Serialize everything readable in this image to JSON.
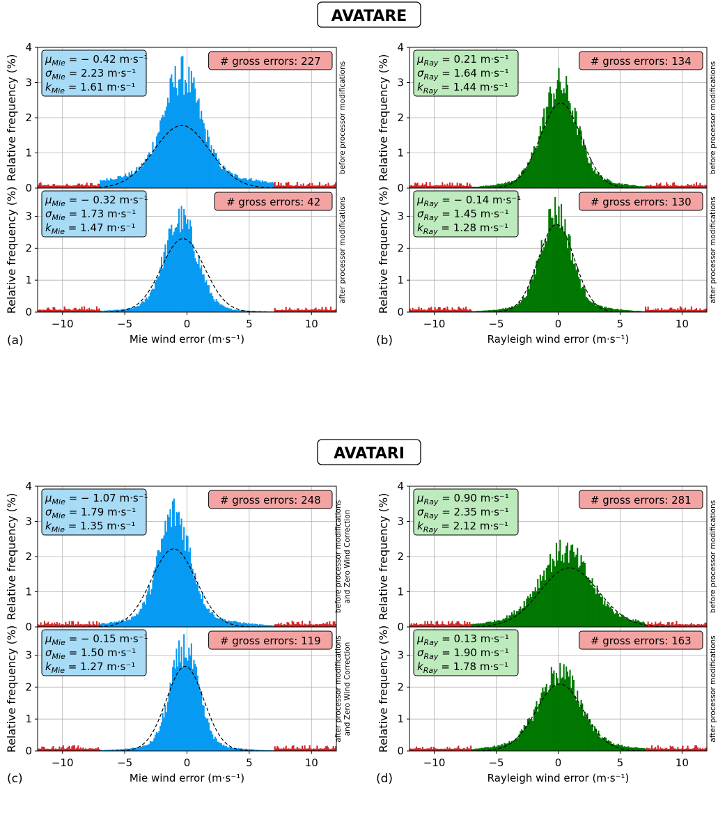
{
  "section_titles": [
    "AVATARE",
    "AVATARI"
  ],
  "panel_labels": [
    "(a)",
    "(b)",
    "(c)",
    "(d)"
  ],
  "shared": {
    "ylabel": "Relative frequency (%)",
    "xlabel_mie": "Mie wind error (m·s⁻¹)",
    "xlabel_ray": "Rayleigh wind error (m·s⁻¹)",
    "xlim": [
      -12,
      12
    ],
    "ylim": [
      0,
      4
    ],
    "x_ticks": [
      "−10",
      "−5",
      "0",
      "5",
      "10"
    ],
    "y_ticks": [
      "0",
      "1",
      "2",
      "3",
      "4"
    ],
    "grid": true,
    "gross_threshold_abs": 7
  },
  "colors": {
    "mie_fill": "#069af3",
    "ray_fill": "#007700",
    "gross_fill": "#d62728",
    "mie_box_bg": "#a8dcf6",
    "ray_box_bg": "#bdebbd",
    "gross_box_bg": "#f4a3a3",
    "fit_line": "#000000",
    "grid": "#b0b0b0"
  },
  "chart_data": [
    {
      "type": "area",
      "panel": "a-top",
      "wind": "Mie",
      "side_label": [
        "before processor modifications"
      ],
      "stats": [
        "μMie = − 0.42 m·s⁻¹",
        "σMie = 2.23 m·s⁻¹",
        "kMie = 1.61 m·s⁻¹"
      ],
      "gross_errors_label": "# gross errors: 227",
      "fit": {
        "mu": -0.42,
        "sigma": 2.23,
        "peak": 1.78
      },
      "hist": {
        "center": -0.4,
        "peak": 2.75,
        "width": 1.45,
        "tail_left": 0.34,
        "tail_right": 0.28,
        "tail_width": 4.5
      }
    },
    {
      "type": "area",
      "panel": "a-bottom",
      "wind": "Mie",
      "side_label": [
        "after processor modifications"
      ],
      "stats": [
        "μMie = − 0.32 m·s⁻¹",
        "σMie = 1.73 m·s⁻¹",
        "kMie = 1.47 m·s⁻¹"
      ],
      "gross_errors_label": "# gross errors: 42",
      "fit": {
        "mu": -0.32,
        "sigma": 1.73,
        "peak": 2.3
      },
      "hist": {
        "center": -0.5,
        "peak": 2.75,
        "width": 1.3,
        "tail_left": 0.12,
        "tail_right": 0.08,
        "tail_width": 3.2
      }
    },
    {
      "type": "area",
      "panel": "b-top",
      "wind": "Rayleigh",
      "side_label": [
        "before processor modifications"
      ],
      "stats": [
        "μRay = 0.21 m·s⁻¹",
        "σRay = 1.64 m·s⁻¹",
        "kRay = 1.44 m·s⁻¹"
      ],
      "gross_errors_label": "# gross errors: 134",
      "fit": {
        "mu": 0.21,
        "sigma": 1.64,
        "peak": 2.42
      },
      "hist": {
        "center": 0.1,
        "peak": 2.65,
        "width": 1.35,
        "tail_left": 0.18,
        "tail_right": 0.22,
        "tail_width": 3.0
      }
    },
    {
      "type": "area",
      "panel": "b-bottom",
      "wind": "Rayleigh",
      "side_label": [
        "after processor modifications"
      ],
      "stats": [
        "μRay = − 0.14 m·s⁻¹",
        "σRay = 1.45 m·s⁻¹",
        "kRay = 1.28 m·s⁻¹"
      ],
      "gross_errors_label": "# gross errors: 130",
      "fit": {
        "mu": -0.14,
        "sigma": 1.45,
        "peak": 2.75
      },
      "hist": {
        "center": -0.2,
        "peak": 2.95,
        "width": 1.2,
        "tail_left": 0.14,
        "tail_right": 0.18,
        "tail_width": 2.8
      }
    },
    {
      "type": "area",
      "panel": "c-top",
      "wind": "Mie",
      "side_label": [
        "before processor modifications",
        "and Zero Wind Correction"
      ],
      "stats": [
        "μMie = − 1.07 m·s⁻¹",
        "σMie = 1.79 m·s⁻¹",
        "kMie = 1.35 m·s⁻¹"
      ],
      "gross_errors_label": "# gross errors: 248",
      "fit": {
        "mu": -1.07,
        "sigma": 1.79,
        "peak": 2.22
      },
      "hist": {
        "center": -1.0,
        "peak": 2.95,
        "width": 1.25,
        "tail_left": 0.18,
        "tail_right": 0.2,
        "tail_width": 3.5
      }
    },
    {
      "type": "area",
      "panel": "c-bottom",
      "wind": "Mie",
      "side_label": [
        "after processor modifications",
        "and Zero Wind Correction"
      ],
      "stats": [
        "μMie = − 0.15 m·s⁻¹",
        "σMie = 1.50 m·s⁻¹",
        "kMie = 1.27 m·s⁻¹"
      ],
      "gross_errors_label": "# gross errors: 119",
      "fit": {
        "mu": -0.15,
        "sigma": 1.5,
        "peak": 2.65
      },
      "hist": {
        "center": -0.2,
        "peak": 3.05,
        "width": 1.1,
        "tail_left": 0.12,
        "tail_right": 0.12,
        "tail_width": 2.8
      }
    },
    {
      "type": "area",
      "panel": "d-top",
      "wind": "Rayleigh",
      "side_label": [
        "before processor modifications"
      ],
      "stats": [
        "μRay = 0.90 m·s⁻¹",
        "σRay = 2.35 m·s⁻¹",
        "kRay = 2.12 m·s⁻¹"
      ],
      "gross_errors_label": "# gross errors: 281",
      "fit": {
        "mu": 0.9,
        "sigma": 2.35,
        "peak": 1.68
      },
      "hist": {
        "center": 0.5,
        "peak": 1.82,
        "width": 1.9,
        "tail_left": 0.2,
        "tail_right": 0.25,
        "tail_width": 4.0
      }
    },
    {
      "type": "area",
      "panel": "d-bottom",
      "wind": "Rayleigh",
      "side_label": [
        "after processor modifications"
      ],
      "stats": [
        "μRay = 0.13 m·s⁻¹",
        "σRay = 1.90 m·s⁻¹",
        "kRay = 1.78 m·s⁻¹"
      ],
      "gross_errors_label": "# gross errors: 163",
      "fit": {
        "mu": 0.13,
        "sigma": 1.9,
        "peak": 2.1
      },
      "hist": {
        "center": 0.1,
        "peak": 2.15,
        "width": 1.6,
        "tail_left": 0.2,
        "tail_right": 0.22,
        "tail_width": 3.5
      }
    }
  ]
}
